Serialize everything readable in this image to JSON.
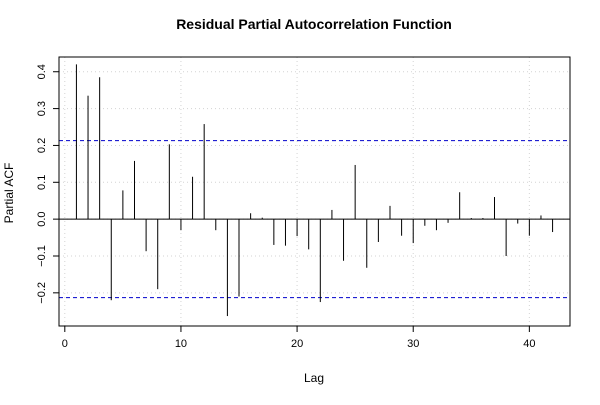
{
  "chart_data": {
    "type": "bar",
    "title": "Residual Partial Autocorrelation Function",
    "xlabel": "Lag",
    "ylabel": "Partial ACF",
    "xlim": [
      -0.5,
      43.5
    ],
    "ylim": [
      -0.29,
      0.44
    ],
    "x_ticks": [
      0,
      10,
      20,
      30,
      40
    ],
    "y_ticks": [
      -0.2,
      -0.1,
      0.0,
      0.1,
      0.2,
      0.3,
      0.4
    ],
    "y_tick_labels": [
      "−0.2",
      "−0.1",
      "0.0",
      "0.1",
      "0.2",
      "0.3",
      "0.4"
    ],
    "grid": true,
    "confidence_bound": 0.213,
    "lags": [
      1,
      2,
      3,
      4,
      5,
      6,
      7,
      8,
      9,
      10,
      11,
      12,
      13,
      14,
      15,
      16,
      17,
      18,
      19,
      20,
      21,
      22,
      23,
      24,
      25,
      26,
      27,
      28,
      29,
      30,
      31,
      32,
      33,
      34,
      35,
      36,
      37,
      38,
      39,
      40,
      41,
      42
    ],
    "values": [
      0.42,
      0.335,
      0.385,
      -0.22,
      0.078,
      0.158,
      -0.087,
      -0.19,
      0.203,
      -0.03,
      0.115,
      0.258,
      -0.03,
      -0.263,
      -0.21,
      0.016,
      0.004,
      -0.07,
      -0.072,
      -0.046,
      -0.082,
      -0.225,
      0.025,
      -0.113,
      0.147,
      -0.132,
      -0.062,
      0.036,
      -0.045,
      -0.065,
      -0.018,
      -0.03,
      -0.01,
      0.073,
      0.003,
      0.003,
      0.06,
      -0.1,
      -0.012,
      -0.045,
      0.01,
      -0.035
    ],
    "colors": {
      "bars": "#000000",
      "bound_line": "#0000cc",
      "grid": "#d3d3d3",
      "axis": "#000000"
    }
  }
}
